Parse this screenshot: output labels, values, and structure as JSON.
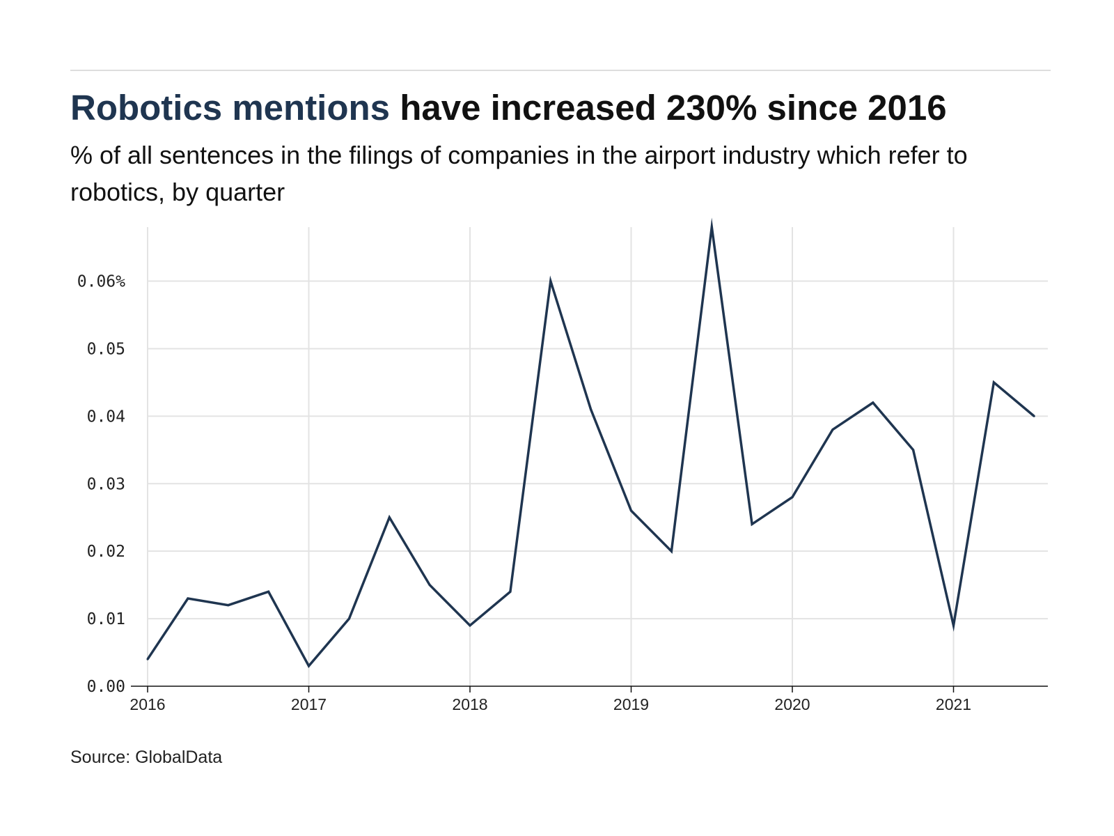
{
  "header": {
    "title_accent": "Robotics mentions",
    "title_rest": " have increased 230% since 2016",
    "subtitle": "% of all sentences in the filings of companies in the airport industry which refer to robotics, by quarter"
  },
  "footer": {
    "source": "Source: GlobalData"
  },
  "colors": {
    "line": "#1f3550",
    "grid": "#e3e3e3",
    "axis": "#111111",
    "accent": "#1f3550"
  },
  "chart_data": {
    "type": "line",
    "title": "Robotics mentions have increased 230% since 2016",
    "subtitle": "% of all sentences in the filings of companies in the airport industry which refer to robotics, by quarter",
    "xlabel": "",
    "ylabel": "",
    "x_ticks": [
      {
        "value": 2016,
        "label": "2016"
      },
      {
        "value": 2017,
        "label": "2017"
      },
      {
        "value": 2018,
        "label": "2018"
      },
      {
        "value": 2019,
        "label": "2019"
      },
      {
        "value": 2020,
        "label": "2020"
      },
      {
        "value": 2021,
        "label": "2021"
      }
    ],
    "y_ticks": [
      {
        "value": 0.0,
        "label": "0.00"
      },
      {
        "value": 0.01,
        "label": "0.01"
      },
      {
        "value": 0.02,
        "label": "0.02"
      },
      {
        "value": 0.03,
        "label": "0.03"
      },
      {
        "value": 0.04,
        "label": "0.04"
      },
      {
        "value": 0.05,
        "label": "0.05"
      },
      {
        "value": 0.06,
        "label": "0.06%"
      }
    ],
    "xlim": [
      2016,
      2021.5
    ],
    "ylim": [
      0,
      0.068
    ],
    "grid": true,
    "legend": "none",
    "series": [
      {
        "name": "Robotics mentions",
        "x": [
          2016.0,
          2016.25,
          2016.5,
          2016.75,
          2017.0,
          2017.25,
          2017.5,
          2017.75,
          2018.0,
          2018.25,
          2018.5,
          2018.75,
          2019.0,
          2019.25,
          2019.5,
          2019.75,
          2020.0,
          2020.25,
          2020.5,
          2020.75,
          2021.0,
          2021.25,
          2021.5
        ],
        "values": [
          0.004,
          0.013,
          0.012,
          0.014,
          0.003,
          0.01,
          0.025,
          0.015,
          0.009,
          0.014,
          0.06,
          0.041,
          0.026,
          0.02,
          0.068,
          0.024,
          0.028,
          0.038,
          0.042,
          0.035,
          0.009,
          0.045,
          0.04
        ]
      }
    ],
    "source": "Source: GlobalData"
  }
}
